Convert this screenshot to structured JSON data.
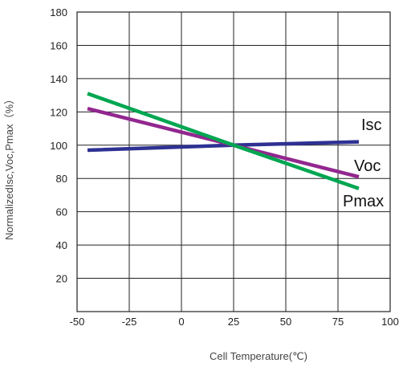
{
  "chart_data": {
    "type": "line",
    "xlabel": "Cell Temperature(℃)",
    "ylabel": "NormalizedIsc,Voc,Pmax（%）",
    "xlim": [
      -50,
      100
    ],
    "ylim": [
      0,
      180
    ],
    "x_ticks": [
      "-50",
      "-25",
      "0",
      "25",
      "50",
      "75",
      "100"
    ],
    "y_ticks": [
      "20",
      "40",
      "60",
      "80",
      "100",
      "120",
      "140",
      "160",
      "180"
    ],
    "grid": true,
    "legend": "inline labels at right end of lines",
    "series": [
      {
        "name": "Isc",
        "color": "#2e3192",
        "x": [
          -45,
          25,
          85
        ],
        "y": [
          97,
          100,
          102
        ]
      },
      {
        "name": "Voc",
        "color": "#92278f",
        "x": [
          -45,
          25,
          85
        ],
        "y": [
          122,
          100,
          81
        ]
      },
      {
        "name": "Pmax",
        "color": "#00a651",
        "x": [
          -45,
          25,
          85
        ],
        "y": [
          131,
          100,
          74
        ]
      }
    ]
  }
}
